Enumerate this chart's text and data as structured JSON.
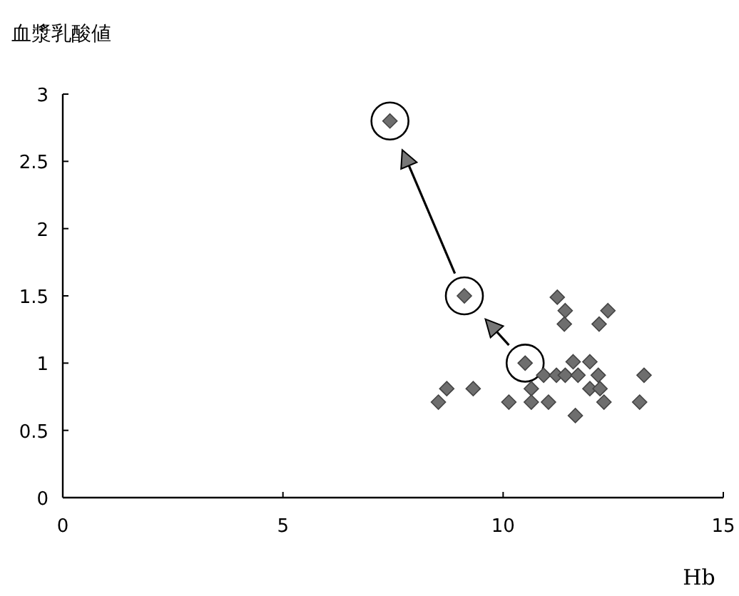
{
  "chart_data": {
    "type": "scatter",
    "ylabel": "血漿乳酸値",
    "xlabel": "Hb",
    "x": [
      7.43,
      9.12,
      10.5,
      8.53,
      8.72,
      9.32,
      10.13,
      10.64,
      10.64,
      10.92,
      11.03,
      11.21,
      11.41,
      11.23,
      11.41,
      11.39,
      11.59,
      11.7,
      11.64,
      11.97,
      11.97,
      12.16,
      12.2,
      12.29,
      12.18,
      12.38,
      13.1,
      13.2
    ],
    "values": [
      2.8,
      1.5,
      1.0,
      0.71,
      0.81,
      0.81,
      0.71,
      0.81,
      0.71,
      0.91,
      0.71,
      0.91,
      0.91,
      1.49,
      1.39,
      1.29,
      1.01,
      0.91,
      0.61,
      1.01,
      0.81,
      0.91,
      0.81,
      0.71,
      1.29,
      1.39,
      0.71,
      0.91
    ],
    "color": "#6e6e6e",
    "marker": "diamond",
    "xlim": [
      0,
      15
    ],
    "xticks": [
      0,
      5,
      10,
      15
    ],
    "ylim": [
      0,
      3
    ],
    "yticks": [
      0,
      0.5,
      1,
      1.5,
      2,
      2.5,
      3
    ]
  }
}
